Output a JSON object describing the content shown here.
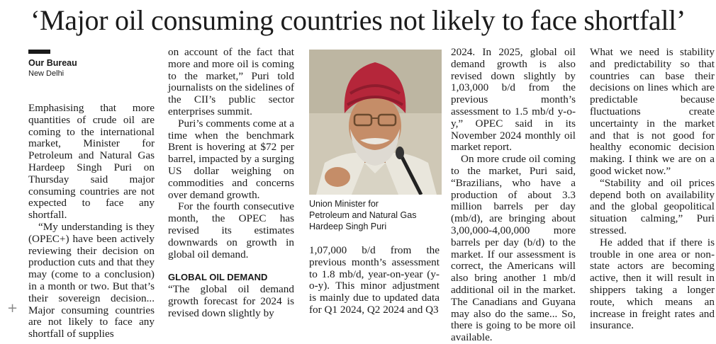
{
  "headline": "‘Major oil consuming countries not likely to face shortfall’",
  "byline": "Our Bureau",
  "dateline": "New Delhi",
  "col1": {
    "p1": "Emphasising that more quantities of crude oil are coming to the international market, Minister for Petroleum and Natural Gas Hardeep Singh Puri on Thursday said major consuming countries are not expected to face any shortfall.",
    "p2": "“My understanding is they (OPEC+) have been actively reviewing their decision on production cuts and that they may (come to a conclusion) in a month or two. But that’s their sovereign decision... Major consuming countries are not likely to face any shortfall of supplies"
  },
  "col2": {
    "p1": "on account of the fact that more and more oil is coming to the market,” Puri told journalists on the sidelines of the CII’s public sector enterprises summit.",
    "p2": "Puri’s comments come at a time when the benchmark Brent is hovering at $72 per barrel, impacted by a surging US dollar weighing on commodities and concerns over demand growth.",
    "p3": "For the fourth consecutive month, the OPEC has revised its estimates downwards on growth in global oil demand.",
    "subhead": "GLOBAL OIL DEMAND",
    "p4": "“The global oil demand growth forecast for 2024 is revised down slightly by"
  },
  "photo": {
    "caption_line1": "Union Minister for",
    "caption_line2": "Petroleum and Natural Gas",
    "caption_line3": "Hardeep Singh Puri"
  },
  "col3": {
    "p1": "1,07,000 b/d from the previous month’s assessment to 1.8 mb/d, year-on-year (y-o-y). This minor adjustment is mainly due to updated data for Q1 2024, Q2 2024 and Q3"
  },
  "col4": {
    "p1": "2024. In 2025, global oil demand growth is also revised down slightly by 1,03,000 b/d from the previous month’s assessment to 1.5 mb/d y-o-y,” OPEC said in its November 2024 monthly oil market report.",
    "p2": "On more crude oil coming to the market, Puri said, “Brazilians, who have a production of about 3.3 million barrels per day (mb/d), are bringing about 3,00,000-4,00,000 more barrels per day (b/d) to the market. If our assessment is correct, the Americans will also bring another 1 mb/d additional oil in the market. The Canadians and Guyana may also do the same... So, there is going to be more oil available."
  },
  "col5": {
    "p1": "What we need is stability and predictability so that countries can base their decisions on lines which are predictable because fluctuations create uncertainty in the market and that is not good for healthy economic decision making. I think we are on a good wicket now.”",
    "p2": "“Stability and oil prices depend both on availability and the global geopolitical situation calming,” Puri stressed.",
    "p3": "He added that if there is trouble in one area or non-state actors are becoming active, then it will result in shippers taking a longer route, which means an increase in freight rates and insurance."
  }
}
